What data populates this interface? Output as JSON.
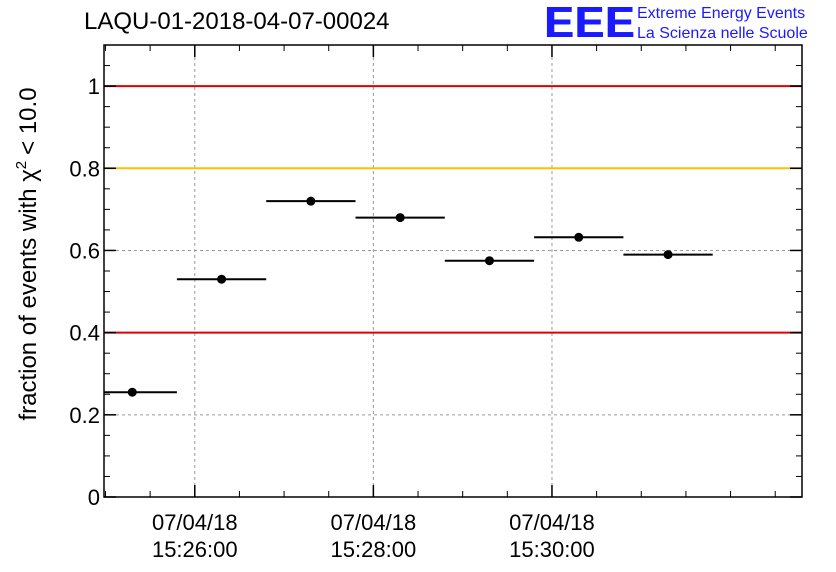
{
  "header": {
    "run_id": "LAQU-01-2018-04-07-00024"
  },
  "logo": {
    "mark": "EEE",
    "line1": "Extreme Energy Events",
    "line2": "La Scienza nelle Scuole",
    "color": "#1a1aff"
  },
  "chart_data": {
    "type": "scatter",
    "title": "LAQU-01-2018-04-07-00024",
    "ylabel": "fraction of events with χ² < 10.0",
    "ylabel_text": "fraction of events with χ",
    "ylabel_sup": "2",
    "ylabel_tail": "< 10.0",
    "ylim": [
      0,
      1.1
    ],
    "y_ticks": [
      0,
      0.2,
      0.4,
      0.6,
      0.8,
      1
    ],
    "y_tick_labels": [
      "0",
      "0.2",
      "0.4",
      "0.6",
      "0.8",
      "1"
    ],
    "xlim": [
      "15:24:59",
      "15:32:48"
    ],
    "x_ticks": [
      {
        "time": "15:26:00",
        "date": "07/04/18",
        "label": "15:26:00"
      },
      {
        "time": "15:28:00",
        "date": "07/04/18",
        "label": "15:28:00"
      },
      {
        "time": "15:30:00",
        "date": "07/04/18",
        "label": "15:30:00"
      }
    ],
    "minor_tick_interval_seconds": 30,
    "grid": true,
    "series": [
      {
        "points": [
          {
            "x_start": "15:24:59",
            "x_end": "15:25:48",
            "x": "15:25:18",
            "y": 0.255
          },
          {
            "x_start": "15:25:48",
            "x_end": "15:26:48",
            "x": "15:26:18",
            "y": 0.53
          },
          {
            "x_start": "15:26:48",
            "x_end": "15:27:48",
            "x": "15:27:18",
            "y": 0.72
          },
          {
            "x_start": "15:27:48",
            "x_end": "15:28:48",
            "x": "15:28:18",
            "y": 0.68
          },
          {
            "x_start": "15:28:48",
            "x_end": "15:29:48",
            "x": "15:29:18",
            "y": 0.575
          },
          {
            "x_start": "15:29:48",
            "x_end": "15:30:48",
            "x": "15:30:18",
            "y": 0.632
          },
          {
            "x_start": "15:30:48",
            "x_end": "15:31:48",
            "x": "15:31:18",
            "y": 0.59
          }
        ]
      }
    ],
    "reference_lines": [
      {
        "y": 1.0,
        "color": "#e00000"
      },
      {
        "y": 0.8,
        "color": "#ffc000"
      },
      {
        "y": 0.4,
        "color": "#e00000"
      }
    ]
  }
}
